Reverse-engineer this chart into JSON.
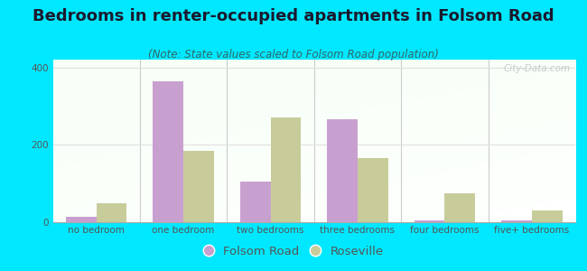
{
  "title": "Bedrooms in renter-occupied apartments in Folsom Road",
  "subtitle": "(Note: State values scaled to Folsom Road population)",
  "categories": [
    "no bedroom",
    "one bedroom",
    "two bedrooms",
    "three bedrooms",
    "four bedrooms",
    "five+ bedrooms"
  ],
  "folsom_road": [
    13,
    365,
    105,
    265,
    5,
    5
  ],
  "roseville": [
    48,
    185,
    270,
    165,
    75,
    30
  ],
  "folsom_color": "#c8a0d0",
  "roseville_color": "#c8cc9a",
  "background_outer": "#00e8ff",
  "ylim": [
    0,
    420
  ],
  "yticks": [
    0,
    200,
    400
  ],
  "bar_width": 0.35,
  "title_fontsize": 13,
  "subtitle_fontsize": 8.5,
  "tick_fontsize": 7.5,
  "legend_fontsize": 9.5,
  "watermark_text": "City-Data.com",
  "grid_color": "#e0e0e0",
  "separator_color": "#cccccc",
  "tick_color": "#555555"
}
